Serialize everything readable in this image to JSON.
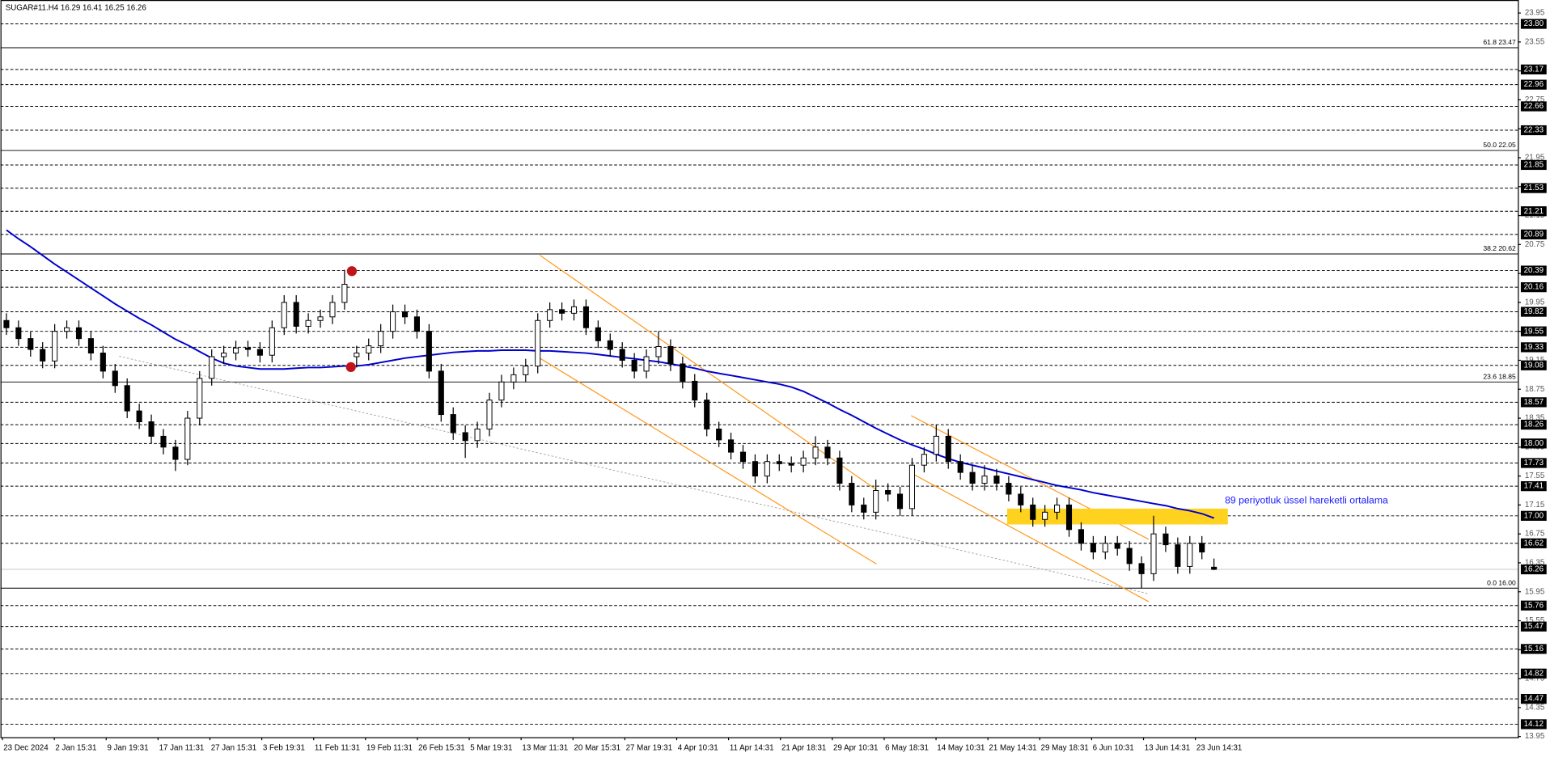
{
  "chart_data": {
    "type": "candlestick",
    "title": "SUGAR#11.H4  16.29 16.41 16.25 16.26",
    "annotation": "89 periyotluk üssel hareketli ortalama",
    "ylim": [
      13.94,
      24.13
    ],
    "yticks": [
      13.95,
      14.35,
      14.75,
      15.15,
      15.55,
      15.95,
      16.35,
      16.75,
      17.15,
      17.55,
      17.95,
      18.35,
      18.75,
      19.15,
      19.55,
      19.95,
      20.35,
      20.75,
      21.15,
      21.55,
      21.95,
      22.35,
      22.75,
      23.15,
      23.55,
      23.95
    ],
    "levels": [
      {
        "value": 23.8,
        "label": "23.80"
      },
      23.17,
      22.96,
      22.66,
      22.33,
      21.85,
      21.53,
      21.21,
      20.89,
      20.39,
      20.16,
      19.82,
      19.55,
      19.33,
      19.08,
      18.57,
      18.26,
      {
        "value": 18,
        "label": "18.00"
      },
      17.73,
      17.41,
      {
        "value": 17,
        "label": "17.00"
      },
      16.62,
      15.76,
      15.47,
      15.16,
      14.82,
      14.47,
      14.12
    ],
    "current_price": 16.26,
    "fib_levels": [
      {
        "value": 23.47,
        "label": "61.8 23.47"
      },
      {
        "value": 22.05,
        "label": "50.0 22.05"
      },
      {
        "value": 20.62,
        "label": "38.2 20.62"
      },
      {
        "value": 18.85,
        "label": "23.6 18.85"
      },
      {
        "value": 16,
        "label": "0.0 16.00"
      }
    ],
    "xlabels": [
      "23 Dec 2024",
      "2 Jan 15:31",
      "9 Jan 19:31",
      "17 Jan 11:31",
      "27 Jan 15:31",
      "3 Feb 19:31",
      "11 Feb 11:31",
      "19 Feb 11:31",
      "26 Feb 15:31",
      "5 Mar 19:31",
      "13 Mar 11:31",
      "20 Mar 15:31",
      "27 Mar 19:31",
      "4 Apr 10:31",
      "11 Apr 14:31",
      "21 Apr 18:31",
      "29 Apr 10:31",
      "6 May 18:31",
      "14 May 10:31",
      "21 May 14:31",
      "29 May 18:31",
      "6 Jun 10:31",
      "13 Jun 14:31",
      "23 Jun 14:31"
    ],
    "up_color": "#ffffff",
    "down_color": "#000000",
    "candles": [
      [
        19.7,
        19.8,
        19.5,
        19.6
      ],
      [
        19.6,
        19.7,
        19.35,
        19.45
      ],
      [
        19.45,
        19.55,
        19.2,
        19.3
      ],
      [
        19.3,
        19.4,
        19.04,
        19.14
      ],
      [
        19.14,
        19.65,
        19.04,
        19.55
      ],
      [
        19.55,
        19.7,
        19.45,
        19.6
      ],
      [
        19.6,
        19.7,
        19.35,
        19.45
      ],
      [
        19.45,
        19.55,
        19.15,
        19.25
      ],
      [
        19.25,
        19.35,
        18.9,
        19.0
      ],
      [
        19.0,
        19.1,
        18.7,
        18.8
      ],
      [
        18.8,
        18.9,
        18.35,
        18.45
      ],
      [
        18.45,
        18.55,
        18.2,
        18.3
      ],
      [
        18.3,
        18.4,
        18.0,
        18.1
      ],
      [
        18.1,
        18.2,
        17.85,
        17.95
      ],
      [
        17.95,
        18.05,
        17.62,
        17.78
      ],
      [
        17.78,
        18.45,
        17.7,
        18.35
      ],
      [
        18.35,
        19.0,
        18.25,
        18.9
      ],
      [
        18.9,
        19.3,
        18.8,
        19.2
      ],
      [
        19.2,
        19.35,
        19.1,
        19.25
      ],
      [
        19.25,
        19.42,
        19.15,
        19.32
      ],
      [
        19.32,
        19.42,
        19.2,
        19.3
      ],
      [
        19.3,
        19.4,
        19.12,
        19.22
      ],
      [
        19.22,
        19.7,
        19.12,
        19.6
      ],
      [
        19.6,
        20.05,
        19.5,
        19.95
      ],
      [
        19.95,
        20.05,
        19.52,
        19.62
      ],
      [
        19.62,
        19.8,
        19.52,
        19.7
      ],
      [
        19.7,
        19.85,
        19.6,
        19.75
      ],
      [
        19.75,
        20.05,
        19.65,
        19.95
      ],
      [
        19.95,
        20.4,
        19.85,
        20.2
      ],
      [
        19.2,
        19.35,
        19.05,
        19.25
      ],
      [
        19.25,
        19.45,
        19.15,
        19.35
      ],
      [
        19.35,
        19.65,
        19.25,
        19.55
      ],
      [
        19.55,
        19.92,
        19.45,
        19.82
      ],
      [
        19.82,
        19.92,
        19.65,
        19.75
      ],
      [
        19.75,
        19.85,
        19.45,
        19.55
      ],
      [
        19.55,
        19.65,
        18.9,
        19.0
      ],
      [
        19.0,
        19.1,
        18.3,
        18.4
      ],
      [
        18.4,
        18.5,
        18.05,
        18.15
      ],
      [
        18.15,
        18.25,
        17.8,
        18.04
      ],
      [
        18.04,
        18.3,
        17.94,
        18.2
      ],
      [
        18.2,
        18.7,
        18.1,
        18.6
      ],
      [
        18.6,
        18.95,
        18.5,
        18.85
      ],
      [
        18.85,
        19.05,
        18.75,
        18.95
      ],
      [
        18.95,
        19.17,
        18.85,
        19.07
      ],
      [
        19.07,
        19.8,
        18.97,
        19.7
      ],
      [
        19.7,
        19.95,
        19.6,
        19.85
      ],
      [
        19.85,
        19.95,
        19.7,
        19.8
      ],
      [
        19.8,
        19.99,
        19.7,
        19.89
      ],
      [
        19.89,
        19.99,
        19.5,
        19.6
      ],
      [
        19.6,
        19.7,
        19.32,
        19.42
      ],
      [
        19.42,
        19.52,
        19.2,
        19.3
      ],
      [
        19.3,
        19.4,
        19.05,
        19.15
      ],
      [
        19.15,
        19.25,
        18.9,
        19.0
      ],
      [
        19.0,
        19.3,
        18.9,
        19.2
      ],
      [
        19.2,
        19.55,
        19.1,
        19.34
      ],
      [
        19.34,
        19.44,
        19.0,
        19.1
      ],
      [
        19.1,
        19.2,
        18.76,
        18.86
      ],
      [
        18.86,
        18.96,
        18.5,
        18.6
      ],
      [
        18.6,
        18.7,
        18.1,
        18.2
      ],
      [
        18.2,
        18.3,
        17.95,
        18.05
      ],
      [
        18.05,
        18.15,
        17.78,
        17.88
      ],
      [
        17.88,
        17.98,
        17.65,
        17.75
      ],
      [
        17.75,
        17.85,
        17.45,
        17.55
      ],
      [
        17.55,
        17.85,
        17.45,
        17.75
      ],
      [
        17.75,
        17.85,
        17.62,
        17.72
      ],
      [
        17.72,
        17.82,
        17.6,
        17.7
      ],
      [
        17.7,
        17.9,
        17.6,
        17.8
      ],
      [
        17.8,
        18.1,
        17.7,
        17.95
      ],
      [
        17.95,
        18.05,
        17.7,
        17.8
      ],
      [
        17.8,
        17.9,
        17.35,
        17.45
      ],
      [
        17.45,
        17.55,
        17.05,
        17.15
      ],
      [
        17.15,
        17.25,
        16.95,
        17.05
      ],
      [
        17.05,
        17.5,
        16.95,
        17.35
      ],
      [
        17.35,
        17.45,
        17.2,
        17.3
      ],
      [
        17.3,
        17.4,
        17.0,
        17.1
      ],
      [
        17.1,
        17.8,
        17.0,
        17.7
      ],
      [
        17.7,
        17.95,
        17.6,
        17.85
      ],
      [
        17.85,
        18.26,
        17.75,
        18.1
      ],
      [
        18.1,
        18.2,
        17.65,
        17.75
      ],
      [
        17.75,
        17.85,
        17.5,
        17.6
      ],
      [
        17.6,
        17.7,
        17.35,
        17.45
      ],
      [
        17.45,
        17.7,
        17.35,
        17.55
      ],
      [
        17.55,
        17.65,
        17.35,
        17.45
      ],
      [
        17.45,
        17.55,
        17.2,
        17.3
      ],
      [
        17.3,
        17.4,
        17.05,
        17.15
      ],
      [
        17.15,
        17.25,
        16.85,
        16.95
      ],
      [
        16.95,
        17.15,
        16.85,
        17.05
      ],
      [
        17.05,
        17.25,
        16.95,
        17.15
      ],
      [
        17.15,
        17.25,
        16.71,
        16.81
      ],
      [
        16.81,
        16.91,
        16.52,
        16.62
      ],
      [
        16.62,
        16.72,
        16.4,
        16.5
      ],
      [
        16.5,
        16.72,
        16.4,
        16.62
      ],
      [
        16.62,
        16.72,
        16.45,
        16.55
      ],
      [
        16.55,
        16.65,
        16.24,
        16.34
      ],
      [
        16.34,
        16.44,
        16.0,
        16.2
      ],
      [
        16.2,
        17.0,
        16.1,
        16.75
      ],
      [
        16.75,
        16.85,
        16.5,
        16.6
      ],
      [
        16.6,
        16.7,
        16.2,
        16.3
      ],
      [
        16.3,
        16.72,
        16.2,
        16.62
      ],
      [
        16.62,
        16.72,
        16.4,
        16.5
      ],
      [
        16.29,
        16.41,
        16.25,
        16.26
      ]
    ],
    "ema": {
      "color": "#0000cd",
      "values": [
        20.95,
        20.83,
        20.72,
        20.6,
        20.48,
        20.37,
        20.26,
        20.15,
        20.04,
        19.93,
        19.83,
        19.73,
        19.64,
        19.54,
        19.44,
        19.36,
        19.27,
        19.18,
        19.11,
        19.07,
        19.05,
        19.03,
        19.03,
        19.03,
        19.04,
        19.05,
        19.05,
        19.06,
        19.07,
        19.07,
        19.09,
        19.12,
        19.15,
        19.18,
        19.2,
        19.22,
        19.24,
        19.26,
        19.27,
        19.28,
        19.28,
        19.29,
        19.29,
        19.29,
        19.28,
        19.28,
        19.27,
        19.26,
        19.25,
        19.23,
        19.21,
        19.19,
        19.17,
        19.15,
        19.13,
        19.1,
        19.07,
        19.04,
        19.0,
        18.97,
        18.94,
        18.91,
        18.88,
        18.85,
        18.82,
        18.78,
        18.72,
        18.64,
        18.56,
        18.47,
        18.39,
        18.3,
        18.21,
        18.13,
        18.05,
        17.98,
        17.92,
        17.85,
        17.79,
        17.74,
        17.7,
        17.66,
        17.62,
        17.58,
        17.54,
        17.5,
        17.46,
        17.42,
        17.39,
        17.36,
        17.32,
        17.29,
        17.26,
        17.23,
        17.2,
        17.17,
        17.14,
        17.1,
        17.07,
        17.03,
        16.97
      ]
    }
  }
}
